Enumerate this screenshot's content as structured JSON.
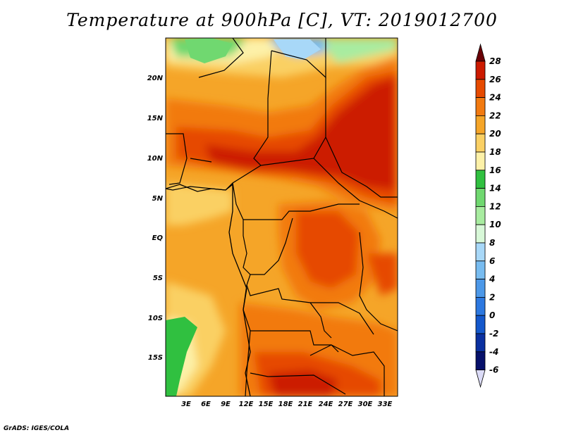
{
  "title": "Temperature at 900hPa [C], VT: 2019012700",
  "credit": "GrADS: IGES/COLA",
  "lat_labels": [
    "20N",
    "15N",
    "10N",
    "5N",
    "EQ",
    "5S",
    "10S",
    "15S"
  ],
  "lon_labels": [
    "3E",
    "6E",
    "9E",
    "12E",
    "15E",
    "18E",
    "21E",
    "24E",
    "27E",
    "30E",
    "33E"
  ],
  "colorbar": {
    "labels": [
      "28",
      "26",
      "24",
      "22",
      "20",
      "18",
      "16",
      "14",
      "12",
      "10",
      "8",
      "6",
      "4",
      "2",
      "0",
      "-2",
      "-4",
      "-6"
    ],
    "colors": [
      "#6a0006",
      "#cc1a00",
      "#e64a00",
      "#f27a10",
      "#f5a528",
      "#fad064",
      "#fdf1a8",
      "#30c040",
      "#70d870",
      "#a8eca0",
      "#d8f8d8",
      "#a8d8f8",
      "#78bcf0",
      "#4c98e8",
      "#2c78e0",
      "#1458cc",
      "#0a30a0",
      "#06106a",
      "#dcdcf8"
    ]
  },
  "map": {
    "region": "Central Africa",
    "variable": "Temperature",
    "level": "900hPa",
    "units": "C",
    "valid_time": "2019012700"
  }
}
